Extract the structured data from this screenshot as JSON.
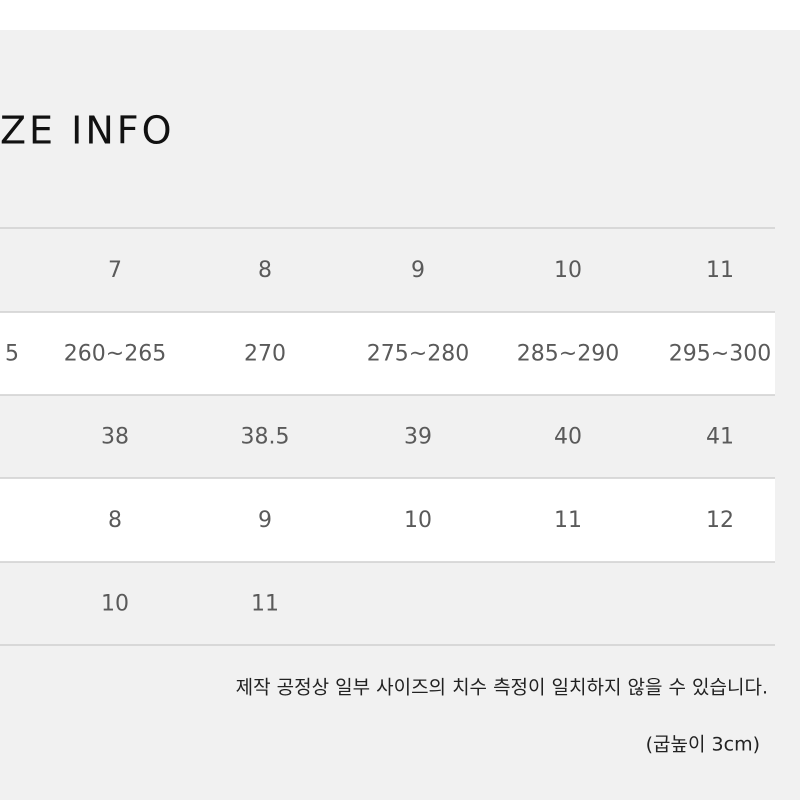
{
  "header": {
    "title": "ZE INFO"
  },
  "table": {
    "rows": [
      [
        "7",
        "8",
        "9",
        "10",
        "11"
      ],
      [
        "5",
        "260~265",
        "270",
        "275~280",
        "285~290",
        "295~300"
      ],
      [
        "38",
        "38.5",
        "39",
        "40",
        "41"
      ],
      [
        "8",
        "9",
        "10",
        "11",
        "12"
      ],
      [
        "10",
        "11"
      ]
    ]
  },
  "notes": [
    "제작 공정상 일부 사이즈의 치수 측정이 일치하지 않을 수 있습니다.",
    "(굽높이 3cm)"
  ]
}
